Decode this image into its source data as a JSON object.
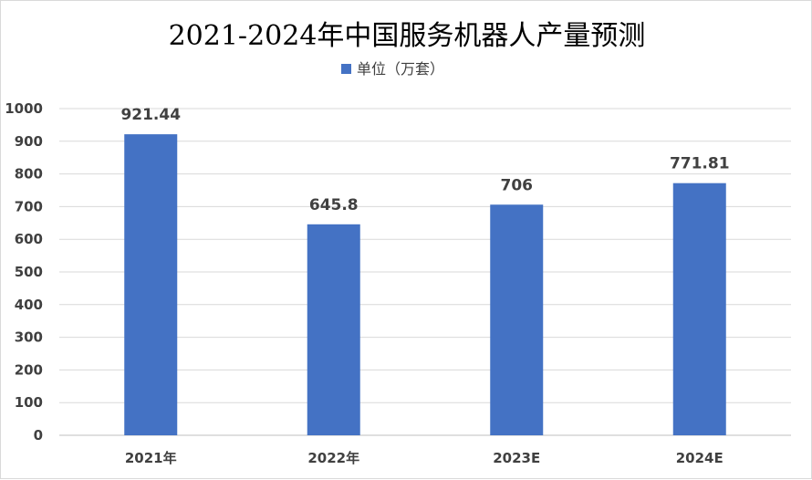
{
  "chart_data": {
    "type": "bar",
    "title": "2021-2024年中国服务机器人产量预测",
    "categories": [
      "2021年",
      "2022年",
      "2023E",
      "2024E"
    ],
    "series": [
      {
        "name": "单位（万套）",
        "values": [
          921.44,
          645.8,
          706,
          771.81
        ],
        "data_labels": [
          "921.44",
          "645.8",
          "706",
          "771.81"
        ]
      }
    ],
    "ylim": [
      0,
      1000
    ],
    "yticks": [
      0,
      100,
      200,
      300,
      400,
      500,
      600,
      700,
      800,
      900,
      1000
    ],
    "xlabel": "",
    "ylabel": "",
    "grid": true,
    "legend_position": "top",
    "colors": {
      "bar": "#4472c4",
      "grid": "#d9d9d9",
      "text": "#404040"
    }
  }
}
